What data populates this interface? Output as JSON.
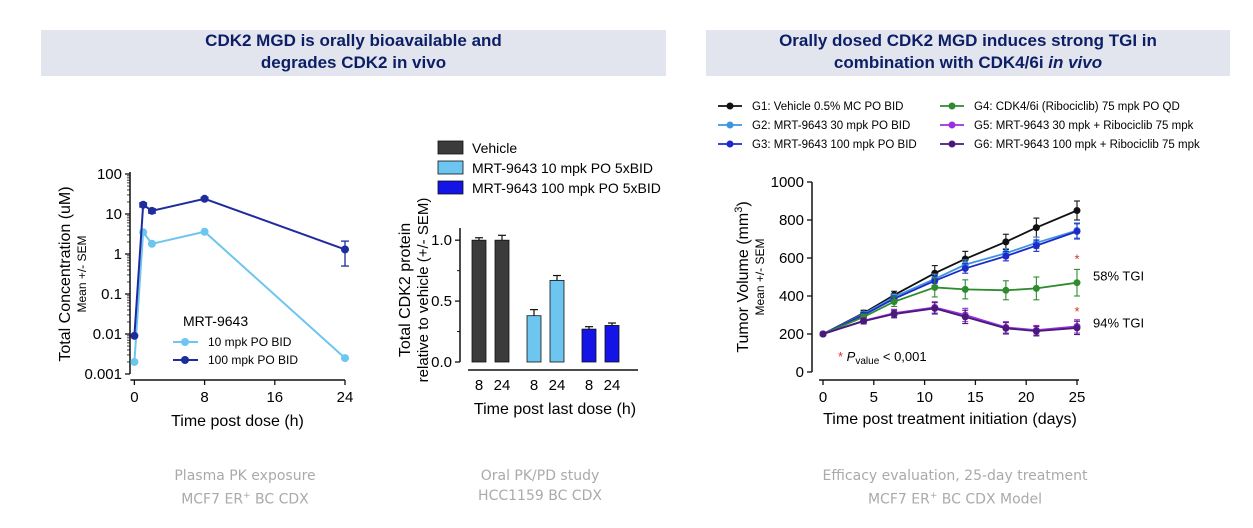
{
  "banners": {
    "left": {
      "line1": "CDK2 MGD is orally bioavailable and",
      "line2": "degrades CDK2 in vivo"
    },
    "right": {
      "line1": "Orally dosed CDK2 MGD induces strong TGI in",
      "line2_prefix": "combination with CDK4/6i ",
      "line2_italic": "in vivo"
    }
  },
  "captions": {
    "pk": {
      "line1": "Plasma PK exposure",
      "line2_a": "MCF7 ER",
      "line2_sup": "+",
      "line2_b": " BC CDX"
    },
    "pd": {
      "line1": "Oral PK/PD study",
      "line2": "HCC1159 BC CDX"
    },
    "eff": {
      "line1": "Efficacy evaluation, 25-day treatment",
      "line2_a": "MCF7 ER",
      "line2_sup": "+",
      "line2_b": " BC CDX Model"
    }
  },
  "chart_data": [
    {
      "type": "line",
      "title": "",
      "ylabel": "Total Concentration (uM)",
      "ylabel_sub": "Mean +/- SEM",
      "xlabel": "Time post dose (h)",
      "yscale": "log",
      "ylim": [
        0.001,
        100
      ],
      "xlim": [
        -0.5,
        24
      ],
      "xticks": [
        "0",
        "8",
        "16",
        "24"
      ],
      "xtick_values": [
        0,
        8,
        16,
        24
      ],
      "yticks": [
        "0.001",
        "0.01",
        "0.1",
        "1",
        "10",
        "100"
      ],
      "ytick_values": [
        0.001,
        0.01,
        0.1,
        1,
        10,
        100
      ],
      "legend_title": "MRT-9643",
      "legend_position": "bottom-left",
      "series": [
        {
          "name": "10 mpk PO BID",
          "color": "#6cc6ef",
          "x": [
            0,
            1,
            2,
            8,
            24
          ],
          "y": [
            0.002,
            3.5,
            1.8,
            3.6,
            0.0025
          ],
          "err": [
            0,
            0,
            0,
            0,
            0
          ]
        },
        {
          "name": "100 mpk PO BID",
          "color": "#1f2c9e",
          "x": [
            0,
            1,
            2,
            8,
            24
          ],
          "y": [
            0.009,
            17,
            12,
            24,
            1.3
          ],
          "err": [
            0,
            2,
            1.5,
            2,
            0.8
          ]
        }
      ]
    },
    {
      "type": "bar",
      "title": "",
      "ylabel": "Total CDK2 protein",
      "ylabel2": "relative to vehicle (+/- SEM)",
      "xlabel": "Time post last dose (h)",
      "ylim": [
        0,
        1.0
      ],
      "yticks": [
        "0.0",
        "0.5",
        "1.0"
      ],
      "ytick_values": [
        0,
        0.5,
        1.0
      ],
      "legend_position": "top",
      "groups": [
        {
          "name": "Vehicle",
          "color": "#3b3b3b",
          "categories": [
            "8",
            "24"
          ],
          "values": [
            1.0,
            1.0
          ],
          "err": [
            0.02,
            0.04
          ]
        },
        {
          "name": "MRT-9643 10 mpk PO 5xBID",
          "color": "#6cc6ef",
          "categories": [
            "8",
            "24"
          ],
          "values": [
            0.38,
            0.67
          ],
          "err": [
            0.05,
            0.04
          ]
        },
        {
          "name": "MRT-9643 100 mpk PO 5xBID",
          "color": "#1414e6",
          "categories": [
            "8",
            "24"
          ],
          "values": [
            0.27,
            0.3
          ],
          "err": [
            0.02,
            0.02
          ]
        }
      ]
    },
    {
      "type": "line",
      "title": "",
      "ylabel": "Tumor Volume (mm",
      "ylabel_sup": "3",
      "ylabel_end": ")",
      "ylabel_sub": "Mean +/- SEM",
      "xlabel": "Time post treatment initiation (days)",
      "ylim": [
        0,
        1000
      ],
      "xlim": [
        0,
        25
      ],
      "xticks": [
        "0",
        "5",
        "10",
        "15",
        "20",
        "25"
      ],
      "xtick_values": [
        0,
        5,
        10,
        15,
        20,
        25
      ],
      "yticks": [
        "0",
        "200",
        "400",
        "600",
        "800",
        "1000"
      ],
      "ytick_values": [
        0,
        200,
        400,
        600,
        800,
        1000
      ],
      "legend_position": "top",
      "annotations": {
        "tgi_g4": "58% TGI",
        "tgi_g5": "94% TGI",
        "pvalue_star": "*",
        "pvalue_p": "P",
        "pvalue_sub": "value",
        "pvalue_rest": " < 0,001",
        "star_color": "#d6322a"
      },
      "series": [
        {
          "name": "G1: Vehicle 0.5% MC PO BID",
          "color": "#111111",
          "x": [
            0,
            4,
            7,
            11,
            14,
            18,
            21,
            25
          ],
          "y": [
            200,
            310,
            405,
            520,
            595,
            685,
            760,
            850
          ],
          "err": [
            5,
            15,
            20,
            40,
            40,
            40,
            50,
            50
          ]
        },
        {
          "name": "G2: MRT-9643 30 mpk PO BID",
          "color": "#3d94e0",
          "x": [
            0,
            4,
            7,
            11,
            14,
            18,
            21,
            25
          ],
          "y": [
            200,
            305,
            395,
            490,
            565,
            625,
            680,
            745
          ],
          "err": [
            5,
            12,
            15,
            25,
            25,
            25,
            30,
            40
          ]
        },
        {
          "name": "G3: MRT-9643 100 mpk PO BID",
          "color": "#1d2ac9",
          "x": [
            0,
            4,
            7,
            11,
            14,
            18,
            21,
            25
          ],
          "y": [
            200,
            300,
            385,
            480,
            545,
            610,
            665,
            740
          ],
          "err": [
            5,
            12,
            15,
            25,
            25,
            25,
            30,
            40
          ]
        },
        {
          "name": "G4: CDK4/6i (Ribociclib) 75 mpk PO QD",
          "color": "#2e8b2e",
          "x": [
            0,
            4,
            7,
            11,
            14,
            18,
            21,
            25
          ],
          "y": [
            200,
            290,
            370,
            445,
            435,
            430,
            440,
            470
          ],
          "err": [
            5,
            15,
            25,
            50,
            50,
            50,
            60,
            70
          ]
        },
        {
          "name": "G5: MRT-9643 30 mpk + Ribociclib 75 mpk",
          "color": "#9a2fe0",
          "x": [
            0,
            4,
            7,
            11,
            14,
            18,
            21,
            25
          ],
          "y": [
            200,
            270,
            310,
            340,
            300,
            235,
            220,
            240
          ],
          "err": [
            5,
            15,
            20,
            30,
            35,
            30,
            25,
            35
          ]
        },
        {
          "name": "G6: MRT-9643 100 mpk + Ribociclib 75 mpk",
          "color": "#4a1a7a",
          "x": [
            0,
            4,
            7,
            11,
            14,
            18,
            21,
            25
          ],
          "y": [
            200,
            268,
            305,
            335,
            290,
            230,
            215,
            232
          ],
          "err": [
            5,
            15,
            20,
            30,
            35,
            30,
            25,
            35
          ]
        }
      ]
    }
  ]
}
